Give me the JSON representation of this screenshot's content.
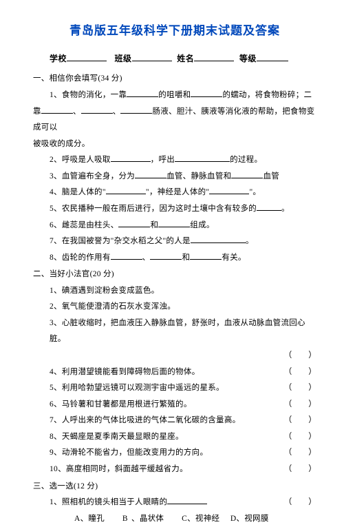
{
  "title": "青岛版五年级科学下册期末试题及答案",
  "header": {
    "school": "学校",
    "class": "班级",
    "name": "姓名",
    "grade": "等级"
  },
  "section1": {
    "heading": "一、相信你会填写(34 分)",
    "q1a": "1、食物的消化，一靠",
    "q1b": "的咀嚼和",
    "q1c": "的蠕动，将食物粉碎；二",
    "q1d": "靠",
    "q1e": "、",
    "q1f": "、",
    "q1g": "肠液、胆汁、胰液等消化液的帮助，把食物变成可以",
    "q1h": "被吸收的成分。",
    "q2a": "2、呼吸是人吸取",
    "q2b": "，呼出",
    "q2c": "的过程。",
    "q3a": "3、血管遍布全身，分为",
    "q3b": "血管、静脉血管和",
    "q3c": "血管",
    "q4a": "4、脑是人体的\"",
    "q4b": "\"，神经是人体的\"",
    "q4c": "\"。",
    "q5a": "5、农民播种一般在雨后进行，因为这时土壤中含有较多的",
    "q5b": "。",
    "q6a": "6、雌蕊是由柱头、",
    "q6b": "和",
    "q6c": "组成。",
    "q7a": "7、在我国被誉为\"杂交水稻之父\"的人是",
    "q7b": "。",
    "q8a": "8、齿轮的作用有",
    "q8b": "、",
    "q8c": "和",
    "q8d": "有关。"
  },
  "section2": {
    "heading": "二、当好小法官(20 分)",
    "q1": "1、碘酒遇到淀粉会变成蓝色。",
    "q2": "2、氧气能使澄清的石灰水变浑浊。",
    "q3": "3、心脏收缩时，把血液压入静脉血管，舒张时，血液从动脉血管流回心脏。",
    "q4": "4、利用潜望镜能看到障碍物后面的物体。",
    "q5": "5、利用哈勃望远镜可以观测宇宙中遥远的星系。",
    "q6": "6、马铃薯和甘薯都是用根进行繁殖的。",
    "q7": "7、人呼出来的气体比吸进的气体二氧化碳的含量高。",
    "q8": "8、天蝎座是夏季南天最显眼的星座。",
    "q9": "9、动滑轮不能省力，但能改变用力的方向。",
    "q10": "10、高度相同时，斜面越平缓越省力。",
    "paren": "（　　）"
  },
  "section3": {
    "heading": "三、选一选(12 分)",
    "q1": "1、照相机的镜头相当于人眼睛的",
    "optA": "A、瞳孔",
    "optB": "B 、晶状体",
    "optC": "C、视神经",
    "optD": "D、视网膜"
  }
}
